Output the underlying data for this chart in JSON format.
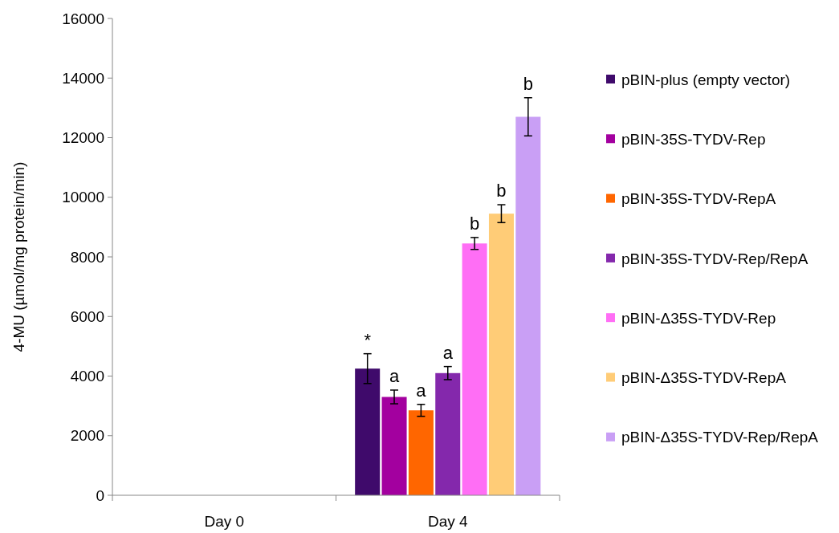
{
  "chart_data": {
    "type": "bar",
    "ylabel": "4-MU (µmol/mg protein/min)",
    "categories": [
      "Day 0",
      "Day 4"
    ],
    "series": [
      {
        "name": "pBIN-plus (empty vector)",
        "color": "#3f0a6b",
        "values": [
          0,
          4250
        ],
        "errors": [
          null,
          500
        ]
      },
      {
        "name": "pBIN-35S-TYDV-Rep",
        "color": "#a3009f",
        "values": [
          0,
          3300
        ],
        "errors": [
          null,
          230
        ]
      },
      {
        "name": "pBIN-35S-TYDV-RepA",
        "color": "#ff6600",
        "values": [
          0,
          2850
        ],
        "errors": [
          null,
          200
        ]
      },
      {
        "name": "pBIN-35S-TYDV-Rep/RepA",
        "color": "#8428ac",
        "values": [
          0,
          4100
        ],
        "errors": [
          null,
          220
        ]
      },
      {
        "name": "pBIN-Δ35S-TYDV-Rep",
        "color": "#ff6ef5",
        "values": [
          0,
          8450
        ],
        "errors": [
          null,
          200
        ]
      },
      {
        "name": "pBIN-Δ35S-TYDV-RepA",
        "color": "#ffcc77",
        "values": [
          0,
          9450
        ],
        "errors": [
          null,
          300
        ]
      },
      {
        "name": "pBIN-Δ35S-TYDV-Rep/RepA",
        "color": "#c99ff5",
        "values": [
          0,
          12700
        ],
        "errors": [
          null,
          640
        ]
      }
    ],
    "annotations": [
      "*",
      "a",
      "a",
      "a",
      "b",
      "b",
      "b"
    ],
    "ylim": [
      0,
      16000
    ],
    "yticks": [
      0,
      2000,
      4000,
      6000,
      8000,
      10000,
      12000,
      14000,
      16000
    ],
    "grid": false,
    "legend": "right"
  }
}
